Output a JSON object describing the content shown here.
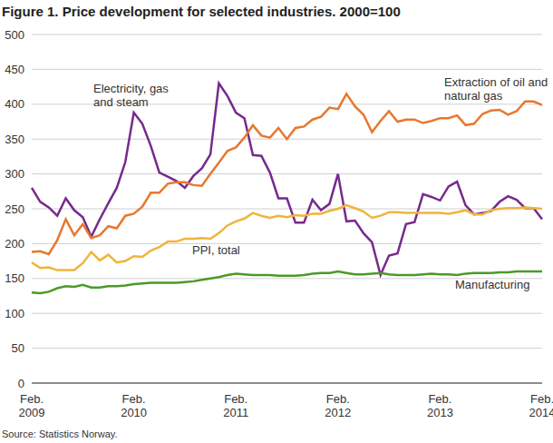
{
  "chart_data": {
    "type": "line",
    "title": "Figure 1. Price development for selected industries. 2000=100",
    "source": "Source: Statistics Norway.",
    "categories": [
      "Feb. 2009",
      null,
      null,
      null,
      null,
      null,
      null,
      null,
      null,
      null,
      null,
      null,
      "Feb. 2010",
      null,
      null,
      null,
      null,
      null,
      null,
      null,
      null,
      null,
      null,
      null,
      "Feb. 2011",
      null,
      null,
      null,
      null,
      null,
      null,
      null,
      null,
      null,
      null,
      null,
      "Feb. 2012",
      null,
      null,
      null,
      null,
      null,
      null,
      null,
      null,
      null,
      null,
      null,
      "Feb. 2013",
      null,
      null,
      null,
      null,
      null,
      null,
      null,
      null,
      null,
      null,
      null,
      "Feb. 2014"
    ],
    "series": [
      {
        "name": "Electricity, gas and steam",
        "color": "#762a8c",
        "values": [
          280,
          260,
          252,
          240,
          265,
          248,
          238,
          210,
          235,
          258,
          280,
          317,
          388,
          372,
          340,
          302,
          296,
          290,
          280,
          297,
          308,
          328,
          430,
          412,
          388,
          380,
          327,
          326,
          302,
          265,
          265,
          230,
          230,
          263,
          248,
          257,
          300,
          232,
          233,
          215,
          202,
          155,
          183,
          186,
          228,
          231,
          271,
          267,
          262,
          282,
          289,
          255,
          242,
          244,
          247,
          260,
          268,
          263,
          251,
          251,
          235
        ]
      },
      {
        "name": "Extraction of oil and natural gas",
        "color": "#e8772e",
        "values": [
          188,
          189,
          185,
          205,
          235,
          212,
          228,
          208,
          212,
          225,
          222,
          240,
          243,
          253,
          273,
          273,
          286,
          288,
          288,
          284,
          283,
          300,
          316,
          333,
          338,
          352,
          370,
          355,
          352,
          366,
          350,
          366,
          368,
          378,
          382,
          395,
          393,
          415,
          397,
          385,
          360,
          376,
          390,
          375,
          378,
          378,
          373,
          376,
          380,
          380,
          384,
          370,
          372,
          386,
          391,
          392,
          385,
          390,
          404,
          404,
          399
        ]
      },
      {
        "name": "PPI, total",
        "color": "#f0b43c",
        "values": [
          173,
          165,
          166,
          162,
          162,
          162,
          172,
          188,
          176,
          184,
          173,
          175,
          182,
          181,
          190,
          195,
          203,
          203,
          207,
          207,
          208,
          207,
          215,
          226,
          232,
          236,
          244,
          240,
          237,
          240,
          238,
          241,
          240,
          243,
          243,
          247,
          250,
          255,
          251,
          246,
          237,
          240,
          245,
          245,
          244,
          244,
          244,
          244,
          244,
          243,
          245,
          248,
          242,
          242,
          248,
          250,
          251,
          251,
          252,
          251,
          250
        ]
      },
      {
        "name": "Manufacturing",
        "color": "#4c9a2a",
        "values": [
          130,
          129,
          131,
          136,
          139,
          138,
          141,
          137,
          137,
          139,
          139,
          140,
          142,
          143,
          144,
          144,
          144,
          144,
          145,
          146,
          148,
          150,
          152,
          155,
          157,
          156,
          155,
          155,
          155,
          154,
          154,
          154,
          155,
          157,
          158,
          158,
          160,
          158,
          156,
          156,
          157,
          158,
          156,
          155,
          155,
          155,
          156,
          157,
          156,
          156,
          155,
          157,
          158,
          158,
          158,
          159,
          159,
          160,
          160,
          160,
          160
        ]
      }
    ],
    "ylim": [
      0,
      500
    ],
    "yticks": [
      0,
      50,
      100,
      150,
      200,
      250,
      300,
      350,
      400,
      450,
      500
    ],
    "grid": true
  }
}
